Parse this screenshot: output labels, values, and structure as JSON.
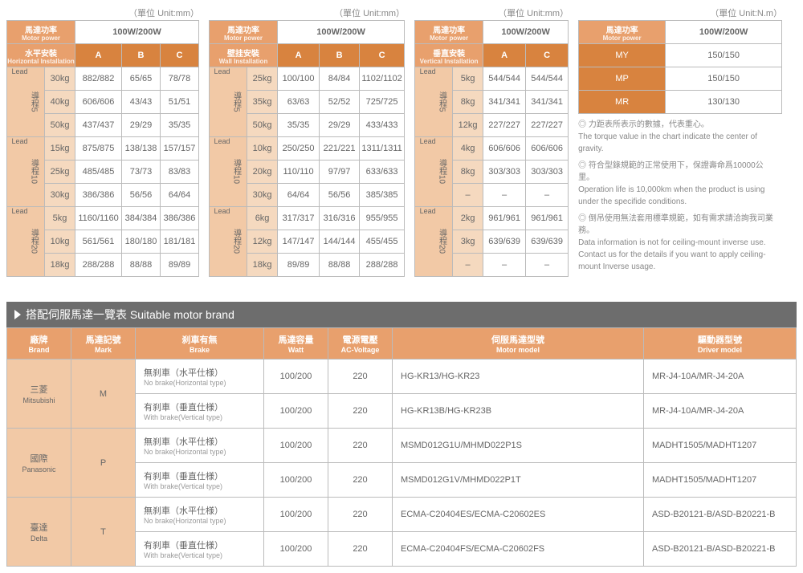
{
  "units": {
    "mm": "（單位 Unit:mm）",
    "nm": "（單位 Unit:N.m）"
  },
  "common_hdr": {
    "motor_power": "馬達功率",
    "motor_power_sub": "Motor power",
    "watts": "100W/200W",
    "A": "A",
    "B": "B",
    "C": "C"
  },
  "table1": {
    "install": "水平安裝",
    "install_sub": "Horizontal Installation",
    "leads": [
      {
        "name": "導程5",
        "lead": "Lead",
        "rows": [
          {
            "kg": "30kg",
            "a": "882/882",
            "b": "65/65",
            "c": "78/78"
          },
          {
            "kg": "40kg",
            "a": "606/606",
            "b": "43/43",
            "c": "51/51"
          },
          {
            "kg": "50kg",
            "a": "437/437",
            "b": "29/29",
            "c": "35/35"
          }
        ]
      },
      {
        "name": "導程10",
        "lead": "Lead",
        "rows": [
          {
            "kg": "15kg",
            "a": "875/875",
            "b": "138/138",
            "c": "157/157"
          },
          {
            "kg": "25kg",
            "a": "485/485",
            "b": "73/73",
            "c": "83/83"
          },
          {
            "kg": "30kg",
            "a": "386/386",
            "b": "56/56",
            "c": "64/64"
          }
        ]
      },
      {
        "name": "導程20",
        "lead": "Lead",
        "rows": [
          {
            "kg": "5kg",
            "a": "1160/1160",
            "b": "384/384",
            "c": "386/386"
          },
          {
            "kg": "10kg",
            "a": "561/561",
            "b": "180/180",
            "c": "181/181"
          },
          {
            "kg": "18kg",
            "a": "288/288",
            "b": "88/88",
            "c": "89/89"
          }
        ]
      }
    ]
  },
  "table2": {
    "install": "壁挂安裝",
    "install_sub": "Wall Installation",
    "leads": [
      {
        "name": "導程5",
        "lead": "Lead",
        "rows": [
          {
            "kg": "25kg",
            "a": "100/100",
            "b": "84/84",
            "c": "1102/1102"
          },
          {
            "kg": "35kg",
            "a": "63/63",
            "b": "52/52",
            "c": "725/725"
          },
          {
            "kg": "50kg",
            "a": "35/35",
            "b": "29/29",
            "c": "433/433"
          }
        ]
      },
      {
        "name": "導程10",
        "lead": "Lead",
        "rows": [
          {
            "kg": "10kg",
            "a": "250/250",
            "b": "221/221",
            "c": "1311/1311"
          },
          {
            "kg": "20kg",
            "a": "110/110",
            "b": "97/97",
            "c": "633/633"
          },
          {
            "kg": "30kg",
            "a": "64/64",
            "b": "56/56",
            "c": "385/385"
          }
        ]
      },
      {
        "name": "導程20",
        "lead": "Lead",
        "rows": [
          {
            "kg": "6kg",
            "a": "317/317",
            "b": "316/316",
            "c": "955/955"
          },
          {
            "kg": "12kg",
            "a": "147/147",
            "b": "144/144",
            "c": "455/455"
          },
          {
            "kg": "18kg",
            "a": "89/89",
            "b": "88/88",
            "c": "288/288"
          }
        ]
      }
    ]
  },
  "table3": {
    "install": "垂直安裝",
    "install_sub": "Vertical Installation",
    "leads": [
      {
        "name": "導程5",
        "lead": "Lead",
        "rows": [
          {
            "kg": "5kg",
            "a": "544/544",
            "c": "544/544"
          },
          {
            "kg": "8kg",
            "a": "341/341",
            "c": "341/341"
          },
          {
            "kg": "12kg",
            "a": "227/227",
            "c": "227/227"
          }
        ]
      },
      {
        "name": "導程10",
        "lead": "Lead",
        "rows": [
          {
            "kg": "4kg",
            "a": "606/606",
            "c": "606/606"
          },
          {
            "kg": "8kg",
            "a": "303/303",
            "c": "303/303"
          },
          {
            "kg": "–",
            "a": "–",
            "c": "–"
          }
        ]
      },
      {
        "name": "導程20",
        "lead": "Lead",
        "rows": [
          {
            "kg": "2kg",
            "a": "961/961",
            "c": "961/961"
          },
          {
            "kg": "3kg",
            "a": "639/639",
            "c": "639/639"
          },
          {
            "kg": "–",
            "a": "–",
            "c": "–"
          }
        ]
      }
    ]
  },
  "table4": {
    "rows": [
      {
        "label": "MY",
        "val": "150/150"
      },
      {
        "label": "MP",
        "val": "150/150"
      },
      {
        "label": "MR",
        "val": "130/130"
      }
    ]
  },
  "notes": {
    "n1a": "◎ 力距表所表示的數據，代表重心。",
    "n1b": "The torque value in the chart indicate the center of gravity.",
    "n2a": "◎ 符合型錄規範的正常使用下，保證壽命爲10000公里。",
    "n2b": "Operation life is 10,000km when the product is using under the specifide conditions.",
    "n3a": "◎ 倒吊使用無法套用標準規範，如有需求請洽詢我司業務。",
    "n3b": "Data information is not for ceiling-mount inverse use. Contact us for the details if you want to apply ceiling-mount Inverse usage."
  },
  "section2": {
    "title": "搭配伺服馬達一覽表 Suitable motor brand",
    "cols": {
      "brand": "廠牌",
      "brand_sub": "Brand",
      "mark": "馬達記號",
      "mark_sub": "Mark",
      "brake": "刹車有無",
      "brake_sub": "Brake",
      "watt": "馬達容量",
      "watt_sub": "Watt",
      "volt": "電源電壓",
      "volt_sub": "AC-Voltage",
      "motor": "伺服馬達型號",
      "motor_sub": "Motor model",
      "driver": "驅動器型號",
      "driver_sub": "Driver model"
    },
    "brake_no": "無刹車（水平仕様）",
    "brake_no_sub": "No brake(Horizontal type)",
    "brake_yes": "有刹車（垂直仕様）",
    "brake_yes_sub": "With brake(Vertical type)",
    "brands": [
      {
        "brand": "三菱",
        "brand_sub": "Mitsubishi",
        "mark": "M",
        "rows": [
          {
            "watt": "100/200",
            "volt": "220",
            "motor": "HG-KR13/HG-KR23",
            "driver": "MR-J4-10A/MR-J4-20A"
          },
          {
            "watt": "100/200",
            "volt": "220",
            "motor": "HG-KR13B/HG-KR23B",
            "driver": "MR-J4-10A/MR-J4-20A"
          }
        ]
      },
      {
        "brand": "國際",
        "brand_sub": "Panasonic",
        "mark": "P",
        "rows": [
          {
            "watt": "100/200",
            "volt": "220",
            "motor": "MSMD012G1U/MHMD022P1S",
            "driver": "MADHT1505/MADHT1207"
          },
          {
            "watt": "100/200",
            "volt": "220",
            "motor": "MSMD012G1V/MHMD022P1T",
            "driver": "MADHT1505/MADHT1207"
          }
        ]
      },
      {
        "brand": "臺達",
        "brand_sub": "Delta",
        "mark": "T",
        "rows": [
          {
            "watt": "100/200",
            "volt": "220",
            "motor": "ECMA-C20404ES/ECMA-C20602ES",
            "driver": "ASD-B20121-B/ASD-B20221-B"
          },
          {
            "watt": "100/200",
            "volt": "220",
            "motor": "ECMA-C20404FS/ECMA-C20602FS",
            "driver": "ASD-B20121-B/ASD-B20221-B"
          }
        ]
      }
    ]
  }
}
